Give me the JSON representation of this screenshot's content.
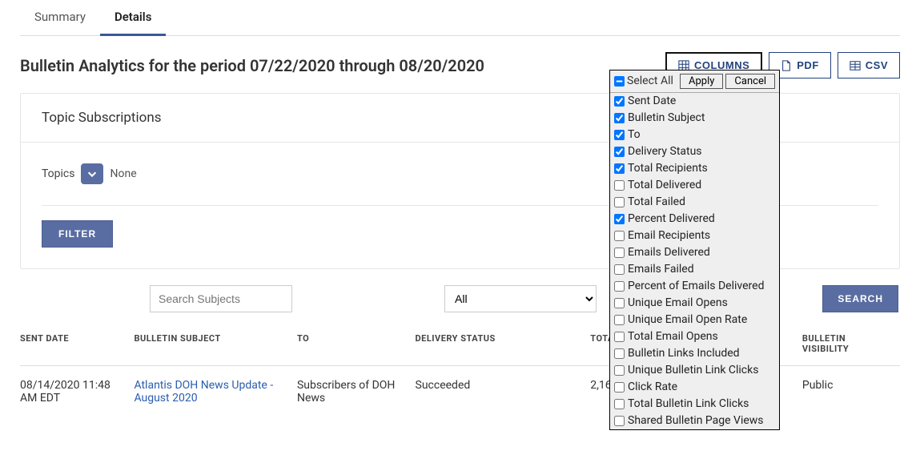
{
  "tabs": {
    "summary": "Summary",
    "details": "Details"
  },
  "page_title": "Bulletin Analytics for the period 07/22/2020 through 08/20/2020",
  "buttons": {
    "columns": "COLUMNS",
    "pdf": "PDF",
    "csv": "CSV",
    "filter": "FILTER",
    "search": "SEARCH"
  },
  "panel": {
    "header": "Topic Subscriptions",
    "topics_label": "Topics",
    "topics_value": "None"
  },
  "search": {
    "placeholder": "Search Subjects",
    "all_option": "All"
  },
  "table": {
    "headers": {
      "sent_date": "SENT DATE",
      "bulletin_subject": "BULLETIN SUBJECT",
      "to": "TO",
      "delivery_status": "DELIVERY STATUS",
      "total_recipients": "TOTAL RECIPIENTS",
      "other": "",
      "bulletin_visibility": "BULLETIN VISIBILITY"
    },
    "row": {
      "sent_date": "08/14/2020 11:48 AM EDT",
      "bulletin_subject": "Atlantis DOH News Update - August 2020",
      "to": "Subscribers of DOH News",
      "delivery_status": "Succeeded",
      "total_recipients": "2,16",
      "other": "",
      "bulletin_visibility": "Public"
    }
  },
  "dropdown": {
    "select_all": "Select All",
    "apply": "Apply",
    "cancel": "Cancel",
    "items": [
      {
        "label": "Sent Date",
        "checked": true
      },
      {
        "label": "Bulletin Subject",
        "checked": true
      },
      {
        "label": "To",
        "checked": true
      },
      {
        "label": "Delivery Status",
        "checked": true
      },
      {
        "label": "Total Recipients",
        "checked": true
      },
      {
        "label": "Total Delivered",
        "checked": false
      },
      {
        "label": "Total Failed",
        "checked": false
      },
      {
        "label": "Percent Delivered",
        "checked": true
      },
      {
        "label": "Email Recipients",
        "checked": false
      },
      {
        "label": "Emails Delivered",
        "checked": false
      },
      {
        "label": "Emails Failed",
        "checked": false
      },
      {
        "label": "Percent of Emails Delivered",
        "checked": false
      },
      {
        "label": "Unique Email Opens",
        "checked": false
      },
      {
        "label": "Unique Email Open Rate",
        "checked": false
      },
      {
        "label": "Total Email Opens",
        "checked": false
      },
      {
        "label": "Bulletin Links Included",
        "checked": false
      },
      {
        "label": "Unique Bulletin Link Clicks",
        "checked": false
      },
      {
        "label": "Click Rate",
        "checked": false
      },
      {
        "label": "Total Bulletin Link Clicks",
        "checked": false
      },
      {
        "label": "Shared Bulletin Page Views",
        "checked": false
      }
    ]
  }
}
